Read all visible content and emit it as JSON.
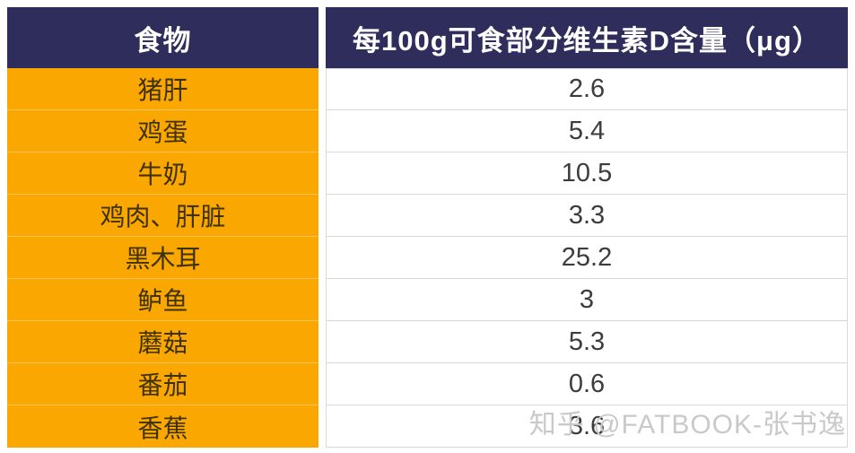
{
  "table": {
    "header": {
      "food": "食物",
      "value": "每100g可食部分维生素D含量（μg）"
    },
    "rows": [
      {
        "food": "猪肝",
        "value": "2.6"
      },
      {
        "food": "鸡蛋",
        "value": "5.4"
      },
      {
        "food": "牛奶",
        "value": "10.5"
      },
      {
        "food": "鸡肉、肝脏",
        "value": "3.3"
      },
      {
        "food": "黑木耳",
        "value": "25.2"
      },
      {
        "food": "鲈鱼",
        "value": "3"
      },
      {
        "food": "蘑菇",
        "value": "5.3"
      },
      {
        "food": "番茄",
        "value": "0.6"
      },
      {
        "food": "香蕉",
        "value": "3.6"
      }
    ]
  },
  "watermark": {
    "text": "知乎 @FATBOOK-张书逸"
  },
  "colors": {
    "header_bg": "#2e2d5c",
    "food_bg": "#fba702",
    "food_text": "#3e3200",
    "value_text": "#3c3c3c",
    "row_border": "#d9d9d9",
    "watermark_text": "#c9c9c9"
  },
  "chart_data": {
    "type": "table",
    "title": "每100g可食部分维生素D含量（μg）",
    "columns": [
      "食物",
      "每100g可食部分维生素D含量（μg）"
    ],
    "rows": [
      [
        "猪肝",
        2.6
      ],
      [
        "鸡蛋",
        5.4
      ],
      [
        "牛奶",
        10.5
      ],
      [
        "鸡肉、肝脏",
        3.3
      ],
      [
        "黑木耳",
        25.2
      ],
      [
        "鲈鱼",
        3
      ],
      [
        "蘑菇",
        5.3
      ],
      [
        "番茄",
        0.6
      ],
      [
        "香蕉",
        3.6
      ]
    ]
  }
}
